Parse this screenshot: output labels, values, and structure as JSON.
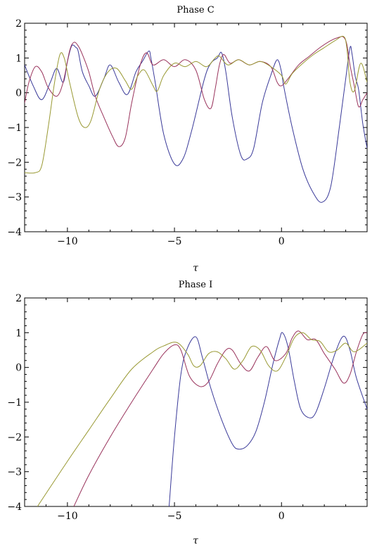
{
  "chart_data": [
    {
      "type": "line",
      "title": "Phase C",
      "xlabel": "τ",
      "ylabel": "",
      "xlim": [
        -12,
        4
      ],
      "ylim": [
        -4,
        2
      ],
      "x_ticks": [
        -10,
        -5,
        0
      ],
      "y_ticks": [
        -4,
        -3,
        -2,
        -1,
        0,
        1,
        2
      ],
      "x_tick_labels": [
        "−10",
        "−5",
        "0"
      ],
      "y_tick_labels": [
        "−4",
        "−3",
        "−2",
        "−1",
        "0",
        "1",
        "2"
      ],
      "grid": false,
      "legend": "none",
      "series": [
        {
          "color": "#3a3a99",
          "points": [
            [
              -12,
              0.8
            ],
            [
              -11.6,
              0.2
            ],
            [
              -11.2,
              -0.2
            ],
            [
              -10.8,
              0.3
            ],
            [
              -10.5,
              0.7
            ],
            [
              -10.2,
              0.3
            ],
            [
              -10.0,
              0.9
            ],
            [
              -9.8,
              1.35
            ],
            [
              -9.6,
              1.3
            ],
            [
              -9.5,
              1.2
            ],
            [
              -9.3,
              0.6
            ],
            [
              -9.0,
              0.2
            ],
            [
              -8.7,
              -0.1
            ],
            [
              -8.3,
              0.4
            ],
            [
              -8.0,
              0.8
            ],
            [
              -7.6,
              0.3
            ],
            [
              -7.2,
              -0.05
            ],
            [
              -6.8,
              0.6
            ],
            [
              -6.5,
              0.9
            ],
            [
              -6.2,
              1.2
            ],
            [
              -6.1,
              1.0
            ],
            [
              -5.9,
              0.3
            ],
            [
              -5.5,
              -1.2
            ],
            [
              -5.0,
              -2.05
            ],
            [
              -4.6,
              -1.9
            ],
            [
              -4.2,
              -1.1
            ],
            [
              -3.6,
              0.4
            ],
            [
              -3.3,
              0.85
            ],
            [
              -3.0,
              1.0
            ],
            [
              -2.8,
              1.15
            ],
            [
              -2.6,
              0.6
            ],
            [
              -2.3,
              -0.7
            ],
            [
              -1.9,
              -1.8
            ],
            [
              -1.6,
              -1.9
            ],
            [
              -1.3,
              -1.6
            ],
            [
              -0.9,
              -0.3
            ],
            [
              -0.5,
              0.5
            ],
            [
              -0.2,
              0.95
            ],
            [
              0.0,
              0.6
            ],
            [
              0.1,
              0.2
            ],
            [
              0.5,
              -1.0
            ],
            [
              1.0,
              -2.2
            ],
            [
              1.5,
              -2.9
            ],
            [
              1.9,
              -3.15
            ],
            [
              2.3,
              -2.7
            ],
            [
              2.7,
              -1.0
            ],
            [
              3.0,
              0.4
            ],
            [
              3.2,
              1.3
            ],
            [
              3.3,
              1.1
            ],
            [
              3.45,
              0.45
            ],
            [
              3.6,
              0.1
            ],
            [
              3.8,
              -0.9
            ],
            [
              4.0,
              -1.6
            ]
          ]
        },
        {
          "color": "#99335c",
          "points": [
            [
              -12,
              -0.3
            ],
            [
              -11.8,
              0.3
            ],
            [
              -11.5,
              0.75
            ],
            [
              -11.2,
              0.6
            ],
            [
              -10.9,
              0.15
            ],
            [
              -10.5,
              -0.1
            ],
            [
              -10.2,
              0.3
            ],
            [
              -9.9,
              1.2
            ],
            [
              -9.7,
              1.45
            ],
            [
              -9.5,
              1.35
            ],
            [
              -9.3,
              1.1
            ],
            [
              -9.0,
              0.6
            ],
            [
              -8.7,
              -0.1
            ],
            [
              -8.3,
              -0.7
            ],
            [
              -7.9,
              -1.25
            ],
            [
              -7.6,
              -1.55
            ],
            [
              -7.3,
              -1.3
            ],
            [
              -7.0,
              -0.3
            ],
            [
              -6.6,
              0.8
            ],
            [
              -6.3,
              1.15
            ],
            [
              -6.0,
              0.8
            ],
            [
              -5.5,
              0.95
            ],
            [
              -5.0,
              0.75
            ],
            [
              -4.5,
              0.95
            ],
            [
              -4.0,
              0.65
            ],
            [
              -3.6,
              -0.2
            ],
            [
              -3.3,
              -0.45
            ],
            [
              -3.1,
              0.1
            ],
            [
              -2.9,
              0.8
            ],
            [
              -2.7,
              1.1
            ],
            [
              -2.4,
              0.85
            ],
            [
              -2.0,
              0.95
            ],
            [
              -1.5,
              0.8
            ],
            [
              -1.0,
              0.9
            ],
            [
              -0.5,
              0.75
            ],
            [
              -0.2,
              0.3
            ],
            [
              0.0,
              0.2
            ],
            [
              0.3,
              0.4
            ],
            [
              0.8,
              0.8
            ],
            [
              1.3,
              1.05
            ],
            [
              1.8,
              1.3
            ],
            [
              2.3,
              1.5
            ],
            [
              2.7,
              1.6
            ],
            [
              2.9,
              1.6
            ],
            [
              3.05,
              1.4
            ],
            [
              3.2,
              0.8
            ],
            [
              3.4,
              0.2
            ],
            [
              3.6,
              -0.4
            ],
            [
              3.8,
              -0.2
            ],
            [
              4.0,
              0.0
            ]
          ]
        },
        {
          "color": "#999933",
          "points": [
            [
              -12,
              -2.3
            ],
            [
              -11.5,
              -2.3
            ],
            [
              -11.2,
              -2.1
            ],
            [
              -10.9,
              -1.0
            ],
            [
              -10.6,
              0.3
            ],
            [
              -10.35,
              1.1
            ],
            [
              -10.15,
              1.0
            ],
            [
              -9.9,
              0.3
            ],
            [
              -9.5,
              -0.7
            ],
            [
              -9.2,
              -1.0
            ],
            [
              -8.9,
              -0.8
            ],
            [
              -8.5,
              0.1
            ],
            [
              -8.1,
              0.6
            ],
            [
              -7.7,
              0.7
            ],
            [
              -7.3,
              0.35
            ],
            [
              -7.0,
              0.1
            ],
            [
              -6.7,
              0.5
            ],
            [
              -6.4,
              0.65
            ],
            [
              -6.0,
              0.2
            ],
            [
              -5.8,
              0.05
            ],
            [
              -5.5,
              0.5
            ],
            [
              -5.0,
              0.85
            ],
            [
              -4.5,
              0.75
            ],
            [
              -4.0,
              0.9
            ],
            [
              -3.5,
              0.75
            ],
            [
              -3.1,
              1.0
            ],
            [
              -2.9,
              1.05
            ],
            [
              -2.5,
              0.8
            ],
            [
              -2.0,
              0.95
            ],
            [
              -1.5,
              0.8
            ],
            [
              -1.0,
              0.9
            ],
            [
              -0.5,
              0.75
            ],
            [
              0.0,
              0.5
            ],
            [
              0.2,
              0.25
            ],
            [
              0.5,
              0.55
            ],
            [
              1.0,
              0.85
            ],
            [
              1.5,
              1.1
            ],
            [
              2.0,
              1.3
            ],
            [
              2.5,
              1.5
            ],
            [
              2.9,
              1.62
            ],
            [
              3.05,
              1.3
            ],
            [
              3.2,
              0.3
            ],
            [
              3.4,
              0.05
            ],
            [
              3.7,
              0.85
            ],
            [
              4.0,
              0.3
            ]
          ]
        }
      ]
    },
    {
      "type": "line",
      "title": "Phase I",
      "xlabel": "τ",
      "ylabel": "",
      "xlim": [
        -12,
        4
      ],
      "ylim": [
        -4,
        2
      ],
      "x_ticks": [
        -10,
        -5,
        0
      ],
      "y_ticks": [
        -4,
        -3,
        -2,
        -1,
        0,
        1,
        2
      ],
      "x_tick_labels": [
        "−10",
        "−5",
        "0"
      ],
      "y_tick_labels": [
        "−4",
        "−3",
        "−2",
        "−1",
        "0",
        "1",
        "2"
      ],
      "grid": false,
      "legend": "none",
      "series": [
        {
          "color": "#3a3a99",
          "points": [
            [
              -5.25,
              -4.0
            ],
            [
              -5.0,
              -2.0
            ],
            [
              -4.7,
              -0.2
            ],
            [
              -4.4,
              0.55
            ],
            [
              -4.0,
              0.88
            ],
            [
              -3.7,
              0.3
            ],
            [
              -3.3,
              -0.6
            ],
            [
              -2.8,
              -1.5
            ],
            [
              -2.3,
              -2.2
            ],
            [
              -2.0,
              -2.35
            ],
            [
              -1.6,
              -2.25
            ],
            [
              -1.2,
              -1.85
            ],
            [
              -0.8,
              -1.0
            ],
            [
              -0.4,
              0.1
            ],
            [
              -0.1,
              0.8
            ],
            [
              0.05,
              1.0
            ],
            [
              0.3,
              0.6
            ],
            [
              0.6,
              -0.4
            ],
            [
              0.9,
              -1.2
            ],
            [
              1.3,
              -1.45
            ],
            [
              1.6,
              -1.3
            ],
            [
              2.0,
              -0.6
            ],
            [
              2.5,
              0.4
            ],
            [
              2.9,
              0.9
            ],
            [
              3.2,
              0.5
            ],
            [
              3.5,
              -0.3
            ],
            [
              4.0,
              -1.2
            ]
          ]
        },
        {
          "color": "#99335c",
          "points": [
            [
              -9.7,
              -4.0
            ],
            [
              -9.0,
              -3.1
            ],
            [
              -8.0,
              -2.0
            ],
            [
              -7.0,
              -1.0
            ],
            [
              -6.0,
              -0.05
            ],
            [
              -5.5,
              0.4
            ],
            [
              -5.0,
              0.65
            ],
            [
              -4.7,
              0.5
            ],
            [
              -4.3,
              -0.25
            ],
            [
              -3.8,
              -0.55
            ],
            [
              -3.4,
              -0.4
            ],
            [
              -3.0,
              0.1
            ],
            [
              -2.6,
              0.5
            ],
            [
              -2.3,
              0.5
            ],
            [
              -1.9,
              0.1
            ],
            [
              -1.5,
              -0.1
            ],
            [
              -1.1,
              0.3
            ],
            [
              -0.7,
              0.6
            ],
            [
              -0.3,
              0.2
            ],
            [
              0.2,
              0.4
            ],
            [
              0.5,
              0.85
            ],
            [
              0.8,
              1.05
            ],
            [
              1.2,
              0.8
            ],
            [
              1.6,
              0.8
            ],
            [
              2.0,
              0.4
            ],
            [
              2.5,
              -0.05
            ],
            [
              2.9,
              -0.45
            ],
            [
              3.2,
              -0.2
            ],
            [
              3.5,
              0.45
            ],
            [
              3.8,
              0.95
            ],
            [
              4.0,
              1.0
            ]
          ]
        },
        {
          "color": "#999933",
          "points": [
            [
              -11.4,
              -4.0
            ],
            [
              -10.0,
              -2.7
            ],
            [
              -9.0,
              -1.8
            ],
            [
              -8.0,
              -0.9
            ],
            [
              -7.0,
              -0.05
            ],
            [
              -6.0,
              0.45
            ],
            [
              -5.5,
              0.62
            ],
            [
              -4.9,
              0.72
            ],
            [
              -4.4,
              0.4
            ],
            [
              -4.1,
              0.05
            ],
            [
              -3.8,
              0.05
            ],
            [
              -3.4,
              0.4
            ],
            [
              -3.0,
              0.45
            ],
            [
              -2.6,
              0.25
            ],
            [
              -2.2,
              -0.05
            ],
            [
              -1.8,
              0.2
            ],
            [
              -1.4,
              0.6
            ],
            [
              -1.0,
              0.5
            ],
            [
              -0.6,
              0.05
            ],
            [
              -0.2,
              -0.1
            ],
            [
              0.2,
              0.3
            ],
            [
              0.6,
              0.85
            ],
            [
              1.0,
              1.0
            ],
            [
              1.4,
              0.8
            ],
            [
              1.8,
              0.75
            ],
            [
              2.2,
              0.45
            ],
            [
              2.6,
              0.5
            ],
            [
              3.0,
              0.7
            ],
            [
              3.4,
              0.45
            ],
            [
              4.0,
              0.7
            ]
          ]
        }
      ]
    }
  ]
}
